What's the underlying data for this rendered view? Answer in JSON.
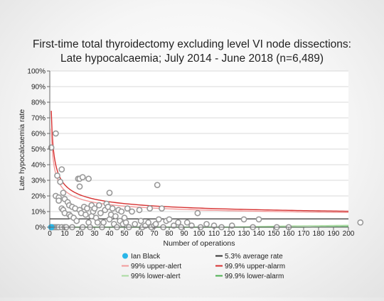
{
  "chart_data": {
    "type": "scatter",
    "title": "First-time total thyroidectomy excluding level VI node dissections:",
    "subtitle": "Late hypocalcaemia; July 2014 - June 2018 (n=6,489)",
    "xlabel": "Number of operations",
    "ylabel": "Late hypocalcaemia rate",
    "xlim": [
      0,
      200
    ],
    "ylim": [
      0,
      100
    ],
    "x_ticks": [
      "0",
      "10",
      "20",
      "30",
      "40",
      "50",
      "60",
      "70",
      "80",
      "90",
      "100",
      "110",
      "120",
      "130",
      "140",
      "150",
      "160",
      "170",
      "180",
      "190",
      "200"
    ],
    "y_ticks": [
      "0%",
      "10%",
      "20%",
      "30%",
      "40%",
      "50%",
      "60%",
      "70%",
      "80%",
      "90%",
      "100%"
    ],
    "grid": true,
    "legend_position": "bottom",
    "average_rate": 5.3,
    "highlight": {
      "name": "Ian Black",
      "x": 1,
      "y": 0,
      "color": "#29b6e8"
    },
    "legend": [
      {
        "key": "highlight",
        "label": "Ian Black",
        "color": "#29b6e8",
        "shape": "dot"
      },
      {
        "key": "avg",
        "label": "5.3% average rate",
        "color": "#333333",
        "shape": "line"
      },
      {
        "key": "u99",
        "label": "99% upper-alert",
        "color": "#f29a9a",
        "shape": "line"
      },
      {
        "key": "u999",
        "label": "99.9% upper-alarm",
        "color": "#d63030",
        "shape": "line"
      },
      {
        "key": "l99",
        "label": "99% lower-alert",
        "color": "#a9dba0",
        "shape": "line"
      },
      {
        "key": "l999",
        "label": "99.9% lower-alarm",
        "color": "#4caf50",
        "shape": "line"
      }
    ],
    "series": [
      {
        "key": "surgeons",
        "color": "#999999",
        "points": [
          [
            1,
            51
          ],
          [
            2,
            0
          ],
          [
            3,
            0
          ],
          [
            4,
            60
          ],
          [
            4,
            20
          ],
          [
            4,
            0
          ],
          [
            5,
            33
          ],
          [
            5,
            0
          ],
          [
            6,
            19
          ],
          [
            6,
            17
          ],
          [
            6,
            0
          ],
          [
            7,
            29
          ],
          [
            8,
            37
          ],
          [
            8,
            12
          ],
          [
            8,
            0
          ],
          [
            9,
            22
          ],
          [
            9,
            11
          ],
          [
            10,
            18
          ],
          [
            10,
            9
          ],
          [
            10,
            0
          ],
          [
            11,
            0
          ],
          [
            12,
            16
          ],
          [
            13,
            14
          ],
          [
            13,
            8
          ],
          [
            14,
            7
          ],
          [
            15,
            13
          ],
          [
            15,
            0
          ],
          [
            16,
            6
          ],
          [
            17,
            12
          ],
          [
            18,
            4
          ],
          [
            19,
            31
          ],
          [
            20,
            31
          ],
          [
            20,
            11
          ],
          [
            20,
            26
          ],
          [
            21,
            9
          ],
          [
            22,
            32
          ],
          [
            22,
            0
          ],
          [
            23,
            13
          ],
          [
            24,
            8
          ],
          [
            25,
            12
          ],
          [
            26,
            31
          ],
          [
            26,
            3
          ],
          [
            27,
            0
          ],
          [
            28,
            14
          ],
          [
            28,
            7
          ],
          [
            29,
            10
          ],
          [
            30,
            12
          ],
          [
            31,
            6
          ],
          [
            32,
            3
          ],
          [
            33,
            14
          ],
          [
            34,
            9
          ],
          [
            35,
            0
          ],
          [
            36,
            3
          ],
          [
            37,
            11
          ],
          [
            38,
            15
          ],
          [
            39,
            13
          ],
          [
            40,
            22
          ],
          [
            40,
            5
          ],
          [
            41,
            8
          ],
          [
            42,
            12
          ],
          [
            43,
            2
          ],
          [
            44,
            7
          ],
          [
            45,
            0
          ],
          [
            46,
            11
          ],
          [
            47,
            4
          ],
          [
            48,
            10
          ],
          [
            49,
            2
          ],
          [
            50,
            6
          ],
          [
            51,
            3
          ],
          [
            52,
            12
          ],
          [
            53,
            0
          ],
          [
            55,
            10
          ],
          [
            57,
            2
          ],
          [
            60,
            11
          ],
          [
            61,
            4
          ],
          [
            62,
            0
          ],
          [
            64,
            1
          ],
          [
            66,
            3
          ],
          [
            67,
            12
          ],
          [
            68,
            0
          ],
          [
            70,
            1
          ],
          [
            71,
            2
          ],
          [
            72,
            27
          ],
          [
            73,
            5
          ],
          [
            75,
            12
          ],
          [
            76,
            0
          ],
          [
            78,
            4
          ],
          [
            80,
            5
          ],
          [
            83,
            1
          ],
          [
            86,
            3
          ],
          [
            88,
            0
          ],
          [
            92,
            3
          ],
          [
            95,
            1
          ],
          [
            99,
            9
          ],
          [
            101,
            0
          ],
          [
            105,
            2
          ],
          [
            110,
            1
          ],
          [
            115,
            0
          ],
          [
            122,
            1
          ],
          [
            130,
            5
          ],
          [
            136,
            0
          ],
          [
            140,
            5
          ],
          [
            152,
            0
          ],
          [
            160,
            0
          ],
          [
            208,
            3
          ]
        ]
      }
    ]
  }
}
